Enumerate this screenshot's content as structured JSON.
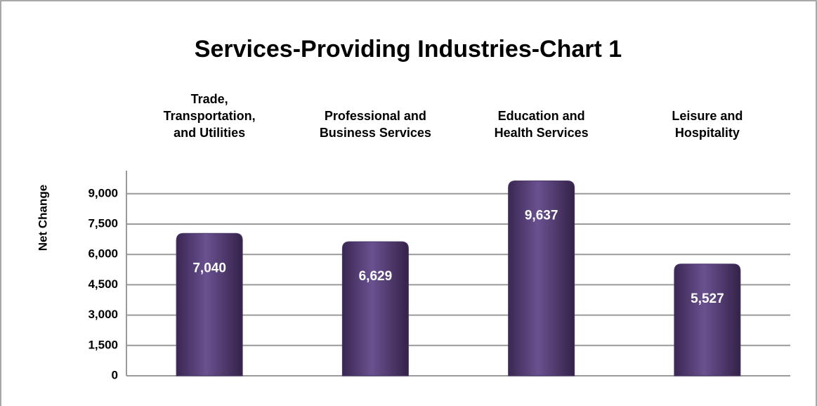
{
  "chart_data": {
    "type": "bar",
    "title": "Services-Providing Industries-Chart 1",
    "y_axis_label": "Net Change",
    "categories": [
      [
        "Trade,",
        "Transportation,",
        "and Utilities"
      ],
      [
        "Professional and",
        "Business Services"
      ],
      [
        "Education and",
        "Health Services"
      ],
      [
        "Leisure and",
        "Hospitality"
      ]
    ],
    "values": [
      7040,
      6629,
      9637,
      5527
    ],
    "value_labels": [
      "7,040",
      "6,629",
      "9,637",
      "5,527"
    ],
    "color": "#4b3569",
    "ylim": [
      0,
      10000
    ],
    "yticks": [
      0,
      {
        "value": 1500,
        "label": "1,500"
      },
      {
        "value": 3000,
        "label": "3,000"
      },
      {
        "value": 4500,
        "label": "4,500"
      },
      {
        "value": 6000,
        "label": "6,000"
      },
      {
        "value": 7500,
        "label": "7,500"
      },
      {
        "value": 9000,
        "label": "9,000"
      }
    ],
    "grid": true
  }
}
